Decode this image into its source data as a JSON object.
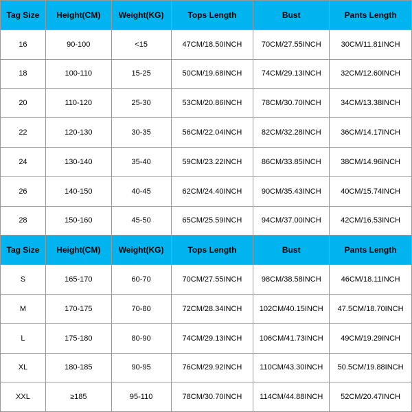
{
  "header_color": "#00b4f0",
  "border_color": "#999999",
  "columns": [
    {
      "label": "Tag Size",
      "class": "col-tag"
    },
    {
      "label": "Height(CM)",
      "class": "col-height"
    },
    {
      "label": "Weight(KG)",
      "class": "col-weight"
    },
    {
      "label": "Tops Length",
      "class": "col-tops"
    },
    {
      "label": "Bust",
      "class": "col-bust"
    },
    {
      "label": "Pants Length",
      "class": "col-pants"
    }
  ],
  "section1_rows": [
    {
      "tag": "16",
      "height": "90-100",
      "weight": "<15",
      "tops": "47CM/18.50INCH",
      "bust": "70CM/27.55INCH",
      "pants": "30CM/11.81INCH"
    },
    {
      "tag": "18",
      "height": "100-110",
      "weight": "15-25",
      "tops": "50CM/19.68INCH",
      "bust": "74CM/29.13INCH",
      "pants": "32CM/12.60INCH"
    },
    {
      "tag": "20",
      "height": "110-120",
      "weight": "25-30",
      "tops": "53CM/20.86INCH",
      "bust": "78CM/30.70INCH",
      "pants": "34CM/13.38INCH"
    },
    {
      "tag": "22",
      "height": "120-130",
      "weight": "30-35",
      "tops": "56CM/22.04INCH",
      "bust": "82CM/32.28INCH",
      "pants": "36CM/14.17INCH"
    },
    {
      "tag": "24",
      "height": "130-140",
      "weight": "35-40",
      "tops": "59CM/23.22INCH",
      "bust": "86CM/33.85INCH",
      "pants": "38CM/14.96INCH"
    },
    {
      "tag": "26",
      "height": "140-150",
      "weight": "40-45",
      "tops": "62CM/24.40INCH",
      "bust": "90CM/35.43INCH",
      "pants": "40CM/15.74INCH"
    },
    {
      "tag": "28",
      "height": "150-160",
      "weight": "45-50",
      "tops": "65CM/25.59INCH",
      "bust": "94CM/37.00INCH",
      "pants": "42CM/16.53INCH"
    }
  ],
  "section2_rows": [
    {
      "tag": "S",
      "height": "165-170",
      "weight": "60-70",
      "tops": "70CM/27.55INCH",
      "bust": "98CM/38.58INCH",
      "pants": "46CM/18.11INCH"
    },
    {
      "tag": "M",
      "height": "170-175",
      "weight": "70-80",
      "tops": "72CM/28.34INCH",
      "bust": "102CM/40.15INCH",
      "pants": "47.5CM/18.70INCH"
    },
    {
      "tag": "L",
      "height": "175-180",
      "weight": "80-90",
      "tops": "74CM/29.13INCH",
      "bust": "106CM/41.73INCH",
      "pants": "49CM/19.29INCH"
    },
    {
      "tag": "XL",
      "height": "180-185",
      "weight": "90-95",
      "tops": "76CM/29.92INCH",
      "bust": "110CM/43.30INCH",
      "pants": "50.5CM/19.88INCH"
    },
    {
      "tag": "XXL",
      "height": "≥185",
      "weight": "95-110",
      "tops": "78CM/30.70INCH",
      "bust": "114CM/44.88INCH",
      "pants": "52CM/20.47INCH"
    }
  ]
}
